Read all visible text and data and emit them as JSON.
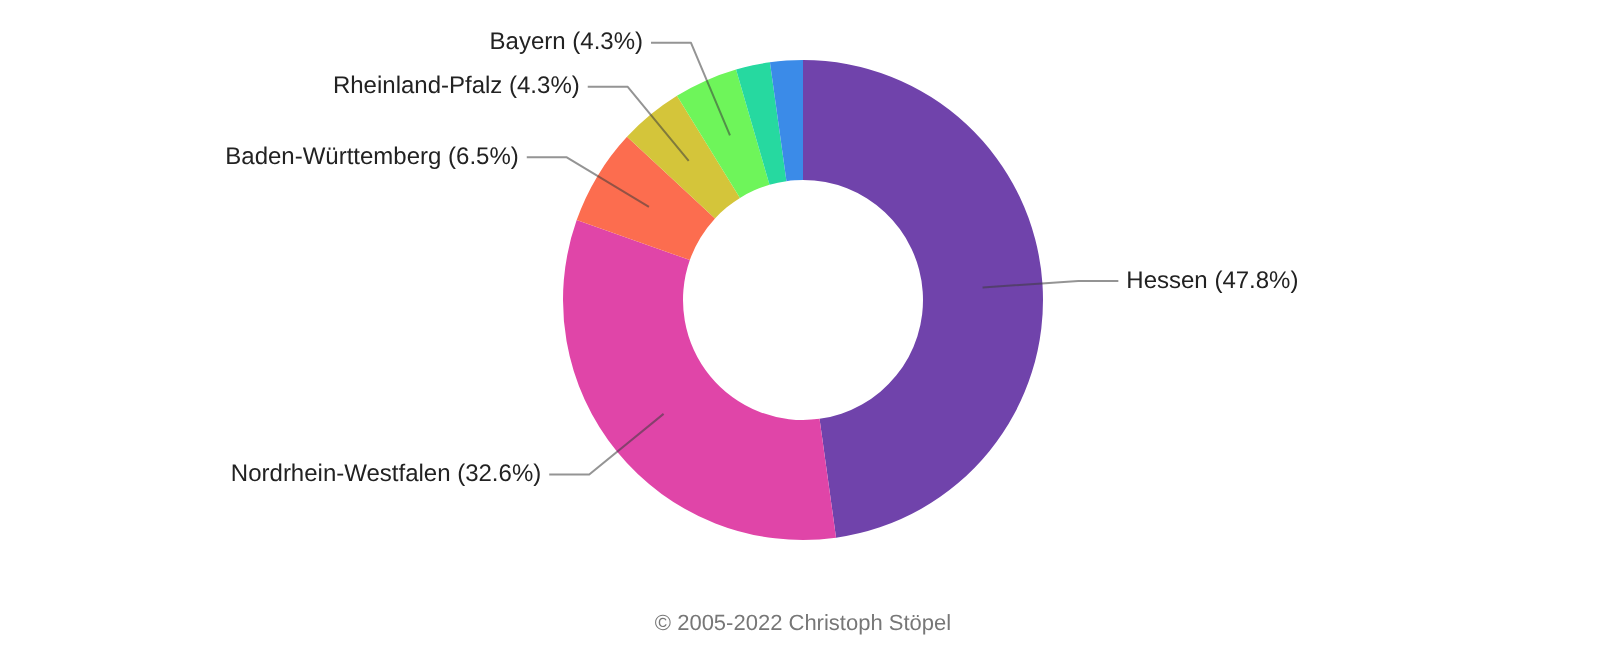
{
  "chart_data": {
    "type": "donut",
    "categories": [
      "Hessen",
      "Nordrhein-Westfalen",
      "Baden-Württemberg",
      "Rheinland-Pfalz",
      "Bayern",
      null,
      null
    ],
    "values": [
      47.8,
      32.6,
      6.5,
      4.3,
      4.3,
      2.3,
      2.2
    ],
    "value_labels": [
      "(47.8%)",
      "(32.6%)",
      "(6.5%)",
      "(4.3%)",
      "(4.3%)",
      null,
      null
    ],
    "colors": [
      "#7043ab",
      "#e045a8",
      "#fc6d4f",
      "#d4c53a",
      "#6ef55a",
      "#26d9a0",
      "#3b8be8"
    ],
    "legend": false,
    "annotations": [
      "© 2005-2022 Christoph Stöpel"
    ]
  }
}
